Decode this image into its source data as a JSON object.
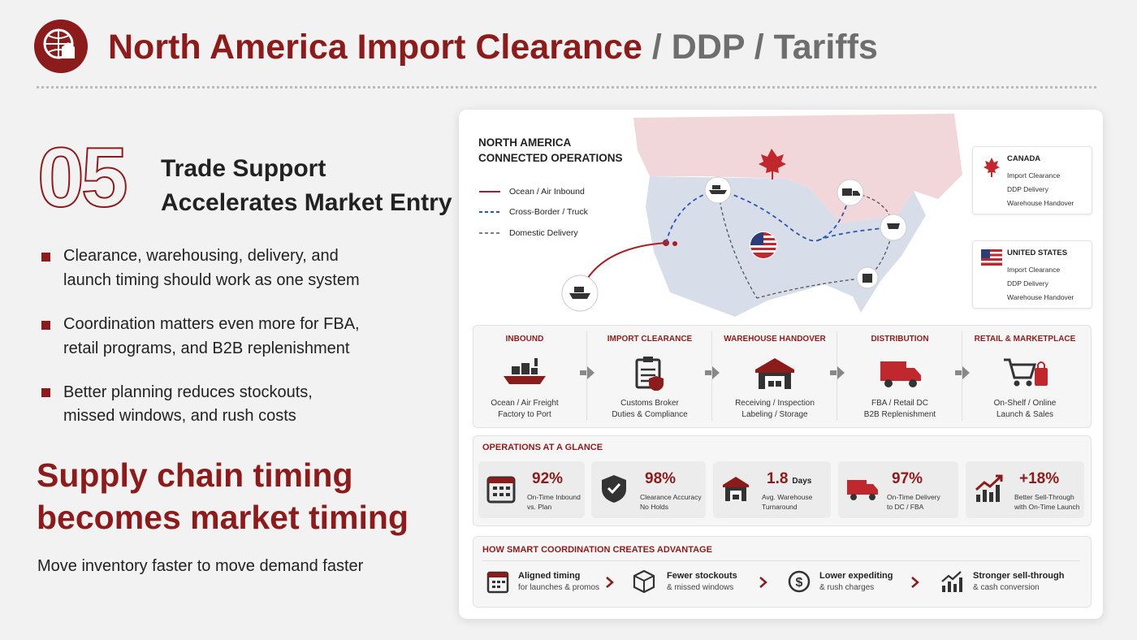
{
  "header": {
    "title_main": "North America Import Clearance",
    "title_rest": "/ DDP / Tariffs"
  },
  "left": {
    "number": "05",
    "heading": [
      "Trade Support",
      "Accelerates Market Entry"
    ],
    "bullets": [
      [
        "Clearance, warehousing, delivery, and",
        "launch timing should work as one system"
      ],
      [
        "Coordination matters even more for FBA,",
        "retail programs, and B2B replenishment"
      ],
      [
        "Better planning reduces stockouts,",
        "missed windows, and rush costs"
      ]
    ],
    "tagline": [
      "Supply chain timing",
      "becomes market timing"
    ],
    "subline": "Move inventory faster to move demand faster"
  },
  "map": {
    "title": [
      "NORTH AMERICA",
      "CONNECTED OPERATIONS"
    ],
    "legend": [
      "Ocean / Air Inbound",
      "Cross-Border / Truck",
      "Domestic Delivery"
    ],
    "countries": [
      {
        "name": "CANADA",
        "items": [
          "Import Clearance",
          "DDP Delivery",
          "Warehouse Handover"
        ]
      },
      {
        "name": "UNITED STATES",
        "items": [
          "Import Clearance",
          "DDP Delivery",
          "Warehouse Handover"
        ]
      }
    ]
  },
  "flow": {
    "steps": [
      {
        "title": "INBOUND",
        "lines": [
          "Ocean / Air Freight",
          "Factory to Port"
        ]
      },
      {
        "title": "IMPORT CLEARANCE",
        "lines": [
          "Customs Broker",
          "Duties & Compliance"
        ]
      },
      {
        "title": "WAREHOUSE HANDOVER",
        "lines": [
          "Receiving / Inspection",
          "Labeling / Storage"
        ]
      },
      {
        "title": "DISTRIBUTION",
        "lines": [
          "FBA / Retail DC",
          "B2B Replenishment"
        ]
      },
      {
        "title": "RETAIL & MARKETPLACE",
        "lines": [
          "On-Shelf / Online",
          "Launch & Sales"
        ]
      }
    ]
  },
  "glance": {
    "title": "OPERATIONS AT A GLANCE",
    "metrics": [
      {
        "value": "92%",
        "label": [
          "On-Time Inbound",
          "vs. Plan"
        ]
      },
      {
        "value": "98%",
        "label": [
          "Clearance Accuracy",
          "No Holds"
        ]
      },
      {
        "value": "1.8",
        "unit": "Days",
        "label": [
          "Avg. Warehouse",
          "Turnaround"
        ]
      },
      {
        "value": "97%",
        "label": [
          "On-Time Delivery",
          "to DC / FBA"
        ]
      },
      {
        "value": "+18%",
        "label": [
          "Better Sell-Through",
          "with On-Time Launch"
        ]
      }
    ]
  },
  "advantage": {
    "title": "HOW SMART COORDINATION CREATES ADVANTAGE",
    "items": [
      {
        "title": "Aligned timing",
        "sub": "for launches & promos"
      },
      {
        "title": "Fewer stockouts",
        "sub": "& missed windows"
      },
      {
        "title": "Lower expediting",
        "sub": "& rush charges"
      },
      {
        "title": "Stronger sell-through",
        "sub": "& cash conversion"
      }
    ]
  }
}
